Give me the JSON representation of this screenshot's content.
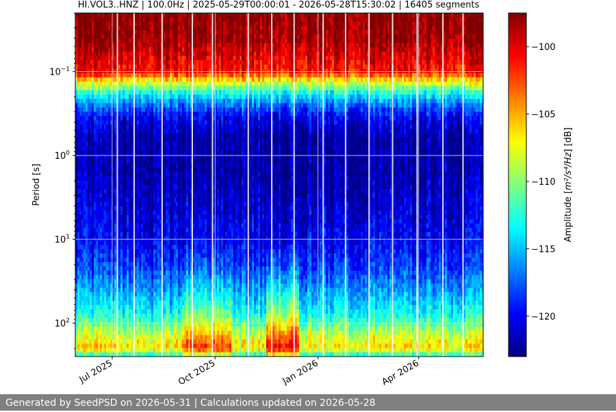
{
  "chart_data": {
    "type": "heatmap",
    "title": "HI.VOL3..HNZ | 100.0Hz | 2025-05-29T00:00:01 - 2026-05-28T15:30:02 | 16405 segments",
    "x_axis": {
      "range": [
        "2025-05-29T00:00:01",
        "2026-05-28T15:30:02"
      ],
      "ticks": [
        {
          "date": "2025-07-01",
          "label": "Jul 2025"
        },
        {
          "date": "2025-10-01",
          "label": "Oct 2025"
        },
        {
          "date": "2026-01-01",
          "label": "Jan 2026"
        },
        {
          "date": "2026-04-01",
          "label": "Apr 2026"
        }
      ]
    },
    "y_axis": {
      "label": "Period [s]",
      "scale": "log",
      "inverted": true,
      "range": [
        0.02,
        250
      ],
      "ticks": [
        {
          "value": 0.1,
          "base": "10",
          "exp": "−1"
        },
        {
          "value": 1,
          "base": "10",
          "exp": "0"
        },
        {
          "value": 10,
          "base": "10",
          "exp": "1"
        },
        {
          "value": 100,
          "base": "10",
          "exp": "2"
        }
      ]
    },
    "grid": true,
    "colormap": "jet",
    "colorbar": {
      "label_prefix": "Amplitude [",
      "label_unit": "m²/s⁴/Hz",
      "label_suffix": "] [dB]",
      "range": [
        -123,
        -97.5
      ],
      "ticks": [
        {
          "value": -100,
          "label": "−100"
        },
        {
          "value": -105,
          "label": "−105"
        },
        {
          "value": -110,
          "label": "−110"
        },
        {
          "value": -115,
          "label": "−115"
        },
        {
          "value": -120,
          "label": "−120"
        }
      ]
    },
    "amplitude_profile_by_period": [
      {
        "period": 0.02,
        "db": -97.5
      },
      {
        "period": 0.04,
        "db": -98
      },
      {
        "period": 0.07,
        "db": -100
      },
      {
        "period": 0.1,
        "db": -101
      },
      {
        "period": 0.13,
        "db": -107
      },
      {
        "period": 0.18,
        "db": -113
      },
      {
        "period": 0.25,
        "db": -117
      },
      {
        "period": 0.35,
        "db": -120
      },
      {
        "period": 0.6,
        "db": -122
      },
      {
        "period": 1.5,
        "db": -122
      },
      {
        "period": 4,
        "db": -121
      },
      {
        "period": 10,
        "db": -120
      },
      {
        "period": 20,
        "db": -118.5
      },
      {
        "period": 40,
        "db": -116
      },
      {
        "period": 80,
        "db": -113
      },
      {
        "period": 130,
        "db": -109
      },
      {
        "period": 200,
        "db": -106
      },
      {
        "period": 250,
        "db": -114
      }
    ],
    "high_noise_periods": [
      {
        "start": "2025-09-01",
        "end": "2025-10-15",
        "max_period": 250,
        "extra_db": 4
      },
      {
        "start": "2025-11-15",
        "end": "2025-12-15",
        "max_period": 250,
        "extra_db": 6
      }
    ],
    "data_gaps": [
      "2025-07-05",
      "2025-07-20",
      "2025-08-14",
      "2025-09-10",
      "2025-09-28",
      "2025-10-30",
      "2025-11-20",
      "2025-12-10",
      "2026-01-05",
      "2026-01-25",
      "2026-02-15",
      "2026-03-08",
      "2026-03-30",
      "2026-04-22",
      "2026-05-10"
    ]
  },
  "footer": {
    "text": "Generated by SeedPSD on 2026-05-31 | Calculations updated on 2026-05-28"
  },
  "colors": {
    "footer_bg": "#7f7f7f",
    "footer_text": "#ffffff",
    "grid": "#d9d9d9"
  }
}
